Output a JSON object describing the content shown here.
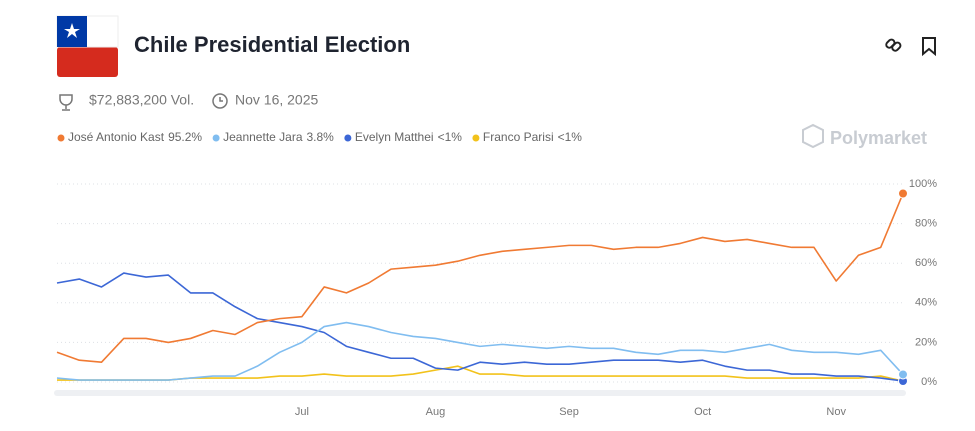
{
  "header": {
    "title": "Chile Presidential Election",
    "volume": "$72,883,200 Vol.",
    "date": "Nov 16, 2025",
    "brand": "Polymarket"
  },
  "chart_data": {
    "type": "line",
    "categories": [
      null,
      null,
      null,
      null,
      null,
      null,
      null,
      null,
      null,
      null,
      null,
      "Jul",
      null,
      null,
      null,
      null,
      null,
      "Aug",
      null,
      null,
      null,
      null,
      null,
      "Sep",
      null,
      null,
      null,
      null,
      null,
      "Oct",
      null,
      null,
      null,
      null,
      null,
      "Nov",
      null,
      null,
      null
    ],
    "series": [
      {
        "name": "José Antonio Kast",
        "current_label": "95.2%",
        "color": "#f07a33",
        "values": [
          15,
          11,
          10,
          22,
          22,
          20,
          22,
          26,
          24,
          30,
          32,
          33,
          48,
          45,
          50,
          57,
          58,
          59,
          61,
          64,
          66,
          67,
          68,
          69,
          69,
          67,
          68,
          68,
          70,
          73,
          71,
          72,
          70,
          68,
          68,
          51,
          64,
          68,
          95.2
        ]
      },
      {
        "name": "Jeannette Jara",
        "current_label": "3.8%",
        "color": "#80bdf0",
        "values": [
          2,
          1,
          1,
          1,
          1,
          1,
          2,
          3,
          3,
          8,
          15,
          20,
          28,
          30,
          28,
          25,
          23,
          22,
          20,
          18,
          19,
          18,
          17,
          18,
          17,
          17,
          15,
          14,
          16,
          16,
          15,
          17,
          19,
          16,
          15,
          15,
          14,
          16,
          3.8
        ]
      },
      {
        "name": "Evelyn Matthei",
        "current_label": "<1%",
        "color": "#3c67d6",
        "values": [
          50,
          52,
          48,
          55,
          53,
          54,
          45,
          45,
          38,
          32,
          30,
          28,
          25,
          18,
          15,
          12,
          12,
          7,
          6,
          10,
          9,
          10,
          9,
          9,
          10,
          11,
          11,
          11,
          10,
          11,
          8,
          6,
          6,
          4,
          4,
          3,
          3,
          2,
          0.5
        ]
      },
      {
        "name": "Franco Parisi",
        "current_label": "<1%",
        "color": "#f2c21b",
        "values": [
          1,
          1,
          1,
          1,
          1,
          1,
          2,
          2,
          2,
          2,
          3,
          3,
          4,
          3,
          3,
          3,
          4,
          6,
          8,
          4,
          4,
          3,
          3,
          3,
          3,
          3,
          3,
          3,
          3,
          3,
          3,
          2,
          2,
          2,
          2,
          2,
          2,
          3,
          0.5
        ]
      }
    ],
    "ylim": [
      0,
      100
    ],
    "yticks": [
      {
        "value": 0,
        "label": "0%"
      },
      {
        "value": 20,
        "label": "20%"
      },
      {
        "value": 40,
        "label": "40%"
      },
      {
        "value": 60,
        "label": "60%"
      },
      {
        "value": 80,
        "label": "80%"
      },
      {
        "value": 100,
        "label": "100%"
      }
    ],
    "grid": true
  }
}
